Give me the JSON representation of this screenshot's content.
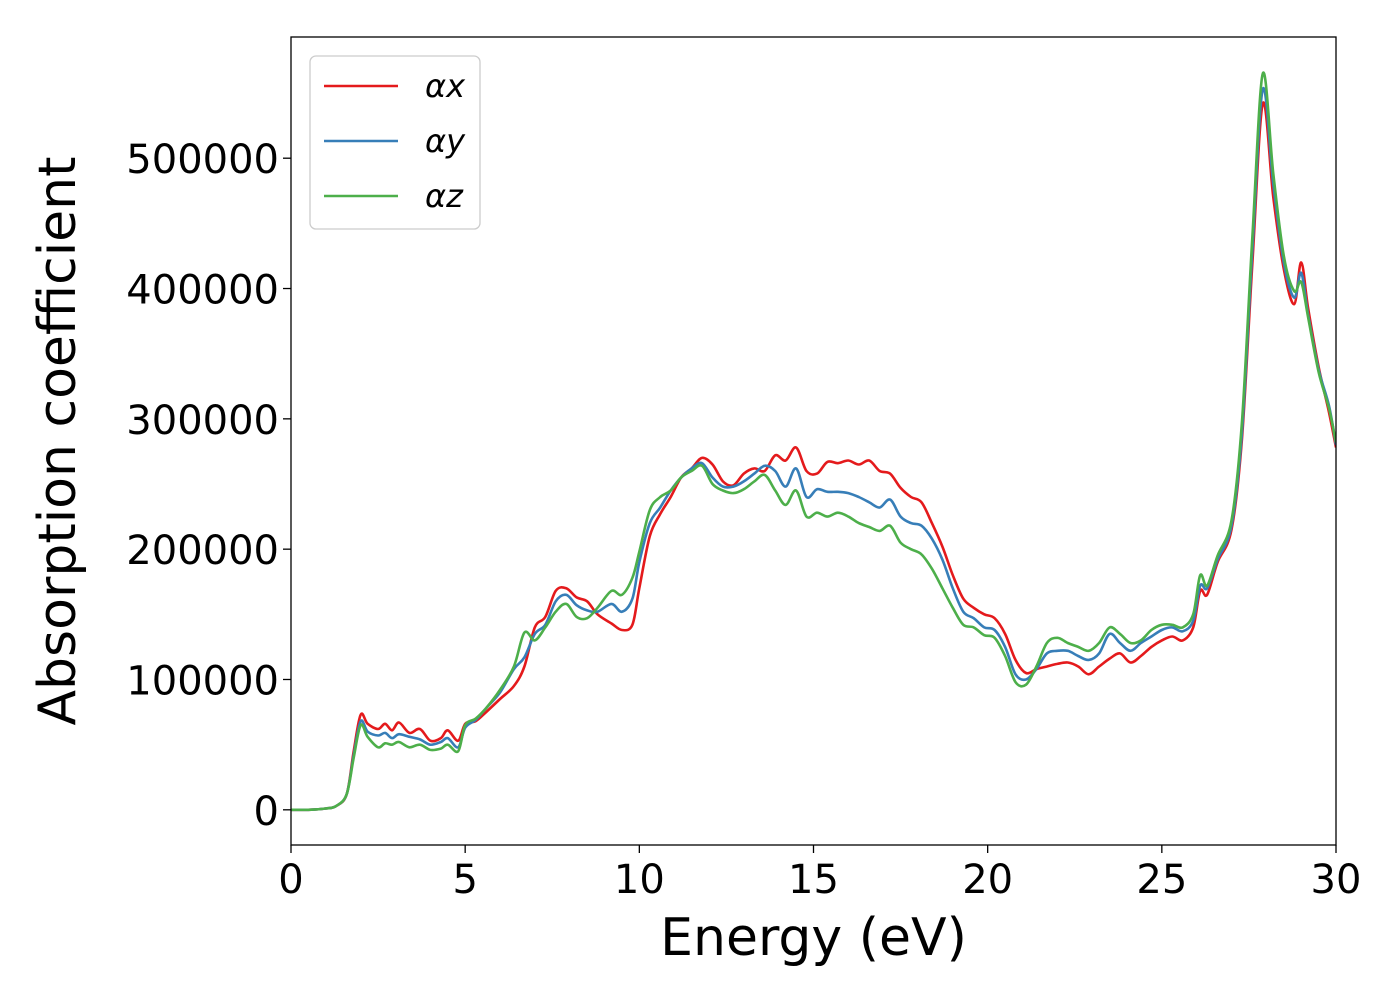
{
  "chart_data": {
    "type": "line",
    "xlabel": "Energy (eV)",
    "ylabel": "Absorption coefficient",
    "xlim": [
      0,
      30
    ],
    "ylim": [
      -27000,
      593000
    ],
    "xticks": [
      0,
      5,
      10,
      15,
      20,
      25,
      30
    ],
    "yticks": [
      0,
      100000,
      200000,
      300000,
      400000,
      500000
    ],
    "grid": false,
    "legend_position": "top-left",
    "series": [
      {
        "name": "αx",
        "color": "#e41a1c",
        "points": [
          [
            0,
            0
          ],
          [
            0.5,
            0
          ],
          [
            1.0,
            1000
          ],
          [
            1.3,
            3000
          ],
          [
            1.6,
            12000
          ],
          [
            1.8,
            45000
          ],
          [
            2.0,
            73000
          ],
          [
            2.2,
            66000
          ],
          [
            2.5,
            62000
          ],
          [
            2.7,
            66000
          ],
          [
            2.9,
            61000
          ],
          [
            3.1,
            67000
          ],
          [
            3.4,
            59000
          ],
          [
            3.7,
            62000
          ],
          [
            4.0,
            53000
          ],
          [
            4.3,
            55000
          ],
          [
            4.5,
            61000
          ],
          [
            4.8,
            53000
          ],
          [
            5.0,
            66000
          ],
          [
            5.3,
            68000
          ],
          [
            5.6,
            75000
          ],
          [
            6.0,
            85000
          ],
          [
            6.4,
            95000
          ],
          [
            6.7,
            110000
          ],
          [
            7.0,
            140000
          ],
          [
            7.3,
            148000
          ],
          [
            7.6,
            168000
          ],
          [
            7.9,
            170000
          ],
          [
            8.2,
            163000
          ],
          [
            8.5,
            160000
          ],
          [
            8.8,
            150000
          ],
          [
            9.2,
            143000
          ],
          [
            9.5,
            138000
          ],
          [
            9.8,
            142000
          ],
          [
            10.0,
            170000
          ],
          [
            10.3,
            210000
          ],
          [
            10.6,
            227000
          ],
          [
            10.9,
            240000
          ],
          [
            11.2,
            255000
          ],
          [
            11.5,
            262000
          ],
          [
            11.8,
            270000
          ],
          [
            12.1,
            265000
          ],
          [
            12.4,
            252000
          ],
          [
            12.7,
            249000
          ],
          [
            13.0,
            258000
          ],
          [
            13.3,
            262000
          ],
          [
            13.6,
            260000
          ],
          [
            13.9,
            272000
          ],
          [
            14.2,
            268000
          ],
          [
            14.5,
            278000
          ],
          [
            14.8,
            260000
          ],
          [
            15.1,
            258000
          ],
          [
            15.4,
            267000
          ],
          [
            15.7,
            266000
          ],
          [
            16.0,
            268000
          ],
          [
            16.3,
            265000
          ],
          [
            16.6,
            268000
          ],
          [
            16.9,
            260000
          ],
          [
            17.2,
            258000
          ],
          [
            17.5,
            247000
          ],
          [
            17.8,
            240000
          ],
          [
            18.1,
            236000
          ],
          [
            18.4,
            220000
          ],
          [
            18.7,
            202000
          ],
          [
            19.0,
            180000
          ],
          [
            19.3,
            162000
          ],
          [
            19.6,
            155000
          ],
          [
            19.9,
            150000
          ],
          [
            20.2,
            147000
          ],
          [
            20.5,
            135000
          ],
          [
            20.8,
            115000
          ],
          [
            21.1,
            105000
          ],
          [
            21.4,
            108000
          ],
          [
            21.7,
            110000
          ],
          [
            22.0,
            112000
          ],
          [
            22.3,
            113000
          ],
          [
            22.6,
            110000
          ],
          [
            22.9,
            104000
          ],
          [
            23.2,
            110000
          ],
          [
            23.5,
            116000
          ],
          [
            23.8,
            120000
          ],
          [
            24.1,
            113000
          ],
          [
            24.4,
            118000
          ],
          [
            24.7,
            125000
          ],
          [
            25.0,
            130000
          ],
          [
            25.3,
            133000
          ],
          [
            25.6,
            130000
          ],
          [
            25.9,
            140000
          ],
          [
            26.1,
            168000
          ],
          [
            26.3,
            165000
          ],
          [
            26.6,
            190000
          ],
          [
            27.0,
            215000
          ],
          [
            27.3,
            285000
          ],
          [
            27.6,
            420000
          ],
          [
            27.9,
            542000
          ],
          [
            28.2,
            470000
          ],
          [
            28.5,
            415000
          ],
          [
            28.8,
            388000
          ],
          [
            29.0,
            420000
          ],
          [
            29.2,
            385000
          ],
          [
            29.5,
            340000
          ],
          [
            29.8,
            305000
          ],
          [
            30.0,
            278000
          ]
        ]
      },
      {
        "name": "αy",
        "color": "#377eb8",
        "points": [
          [
            0,
            0
          ],
          [
            0.5,
            0
          ],
          [
            1.0,
            1000
          ],
          [
            1.3,
            3000
          ],
          [
            1.6,
            12000
          ],
          [
            1.8,
            42000
          ],
          [
            2.0,
            68000
          ],
          [
            2.2,
            60000
          ],
          [
            2.5,
            57000
          ],
          [
            2.7,
            59000
          ],
          [
            2.9,
            55000
          ],
          [
            3.1,
            58000
          ],
          [
            3.4,
            56000
          ],
          [
            3.7,
            54000
          ],
          [
            4.0,
            50000
          ],
          [
            4.3,
            52000
          ],
          [
            4.5,
            55000
          ],
          [
            4.8,
            48000
          ],
          [
            5.0,
            63000
          ],
          [
            5.3,
            69000
          ],
          [
            5.6,
            78000
          ],
          [
            6.0,
            90000
          ],
          [
            6.4,
            108000
          ],
          [
            6.7,
            117000
          ],
          [
            7.0,
            135000
          ],
          [
            7.3,
            142000
          ],
          [
            7.6,
            160000
          ],
          [
            7.9,
            165000
          ],
          [
            8.2,
            157000
          ],
          [
            8.5,
            153000
          ],
          [
            8.8,
            152000
          ],
          [
            9.2,
            158000
          ],
          [
            9.5,
            152000
          ],
          [
            9.8,
            162000
          ],
          [
            10.0,
            190000
          ],
          [
            10.3,
            220000
          ],
          [
            10.6,
            232000
          ],
          [
            10.9,
            245000
          ],
          [
            11.2,
            255000
          ],
          [
            11.5,
            262000
          ],
          [
            11.8,
            266000
          ],
          [
            12.1,
            255000
          ],
          [
            12.4,
            248000
          ],
          [
            12.7,
            248000
          ],
          [
            13.0,
            252000
          ],
          [
            13.3,
            258000
          ],
          [
            13.6,
            264000
          ],
          [
            13.9,
            260000
          ],
          [
            14.2,
            248000
          ],
          [
            14.5,
            262000
          ],
          [
            14.8,
            240000
          ],
          [
            15.1,
            246000
          ],
          [
            15.4,
            244000
          ],
          [
            15.7,
            244000
          ],
          [
            16.0,
            243000
          ],
          [
            16.3,
            240000
          ],
          [
            16.6,
            236000
          ],
          [
            16.9,
            232000
          ],
          [
            17.2,
            238000
          ],
          [
            17.5,
            225000
          ],
          [
            17.8,
            220000
          ],
          [
            18.1,
            218000
          ],
          [
            18.4,
            208000
          ],
          [
            18.7,
            192000
          ],
          [
            19.0,
            170000
          ],
          [
            19.3,
            152000
          ],
          [
            19.6,
            147000
          ],
          [
            19.9,
            140000
          ],
          [
            20.2,
            138000
          ],
          [
            20.5,
            125000
          ],
          [
            20.8,
            104000
          ],
          [
            21.1,
            100000
          ],
          [
            21.4,
            108000
          ],
          [
            21.7,
            120000
          ],
          [
            22.0,
            122000
          ],
          [
            22.3,
            122000
          ],
          [
            22.6,
            118000
          ],
          [
            22.9,
            115000
          ],
          [
            23.2,
            120000
          ],
          [
            23.5,
            135000
          ],
          [
            23.8,
            128000
          ],
          [
            24.1,
            122000
          ],
          [
            24.4,
            128000
          ],
          [
            24.7,
            133000
          ],
          [
            25.0,
            138000
          ],
          [
            25.3,
            140000
          ],
          [
            25.6,
            137000
          ],
          [
            25.9,
            145000
          ],
          [
            26.1,
            172000
          ],
          [
            26.3,
            170000
          ],
          [
            26.6,
            192000
          ],
          [
            27.0,
            218000
          ],
          [
            27.3,
            290000
          ],
          [
            27.6,
            430000
          ],
          [
            27.9,
            553000
          ],
          [
            28.2,
            480000
          ],
          [
            28.5,
            420000
          ],
          [
            28.8,
            393000
          ],
          [
            29.0,
            412000
          ],
          [
            29.2,
            380000
          ],
          [
            29.5,
            338000
          ],
          [
            29.8,
            310000
          ],
          [
            30.0,
            280000
          ]
        ]
      },
      {
        "name": "αz",
        "color": "#4daf4a",
        "points": [
          [
            0,
            0
          ],
          [
            0.5,
            0
          ],
          [
            1.0,
            1000
          ],
          [
            1.3,
            3000
          ],
          [
            1.6,
            12000
          ],
          [
            1.8,
            40000
          ],
          [
            2.0,
            65000
          ],
          [
            2.2,
            56000
          ],
          [
            2.5,
            48000
          ],
          [
            2.7,
            51000
          ],
          [
            2.9,
            50000
          ],
          [
            3.1,
            52000
          ],
          [
            3.4,
            48000
          ],
          [
            3.7,
            50000
          ],
          [
            4.0,
            46000
          ],
          [
            4.3,
            47000
          ],
          [
            4.5,
            50000
          ],
          [
            4.8,
            45000
          ],
          [
            5.0,
            65000
          ],
          [
            5.3,
            70000
          ],
          [
            5.6,
            78000
          ],
          [
            6.0,
            92000
          ],
          [
            6.4,
            110000
          ],
          [
            6.7,
            136000
          ],
          [
            7.0,
            130000
          ],
          [
            7.3,
            140000
          ],
          [
            7.6,
            152000
          ],
          [
            7.9,
            158000
          ],
          [
            8.2,
            148000
          ],
          [
            8.5,
            147000
          ],
          [
            8.8,
            155000
          ],
          [
            9.2,
            168000
          ],
          [
            9.5,
            165000
          ],
          [
            9.8,
            178000
          ],
          [
            10.0,
            198000
          ],
          [
            10.3,
            230000
          ],
          [
            10.6,
            240000
          ],
          [
            10.9,
            245000
          ],
          [
            11.2,
            255000
          ],
          [
            11.5,
            260000
          ],
          [
            11.8,
            264000
          ],
          [
            12.1,
            250000
          ],
          [
            12.4,
            245000
          ],
          [
            12.7,
            243000
          ],
          [
            13.0,
            246000
          ],
          [
            13.3,
            252000
          ],
          [
            13.6,
            257000
          ],
          [
            13.9,
            245000
          ],
          [
            14.2,
            234000
          ],
          [
            14.5,
            245000
          ],
          [
            14.8,
            225000
          ],
          [
            15.1,
            228000
          ],
          [
            15.4,
            225000
          ],
          [
            15.7,
            228000
          ],
          [
            16.0,
            225000
          ],
          [
            16.3,
            220000
          ],
          [
            16.6,
            217000
          ],
          [
            16.9,
            214000
          ],
          [
            17.2,
            218000
          ],
          [
            17.5,
            205000
          ],
          [
            17.8,
            200000
          ],
          [
            18.1,
            196000
          ],
          [
            18.4,
            185000
          ],
          [
            18.7,
            170000
          ],
          [
            19.0,
            155000
          ],
          [
            19.3,
            142000
          ],
          [
            19.6,
            140000
          ],
          [
            19.9,
            134000
          ],
          [
            20.2,
            132000
          ],
          [
            20.5,
            118000
          ],
          [
            20.8,
            98000
          ],
          [
            21.1,
            96000
          ],
          [
            21.4,
            110000
          ],
          [
            21.7,
            128000
          ],
          [
            22.0,
            132000
          ],
          [
            22.3,
            128000
          ],
          [
            22.6,
            125000
          ],
          [
            22.9,
            122000
          ],
          [
            23.2,
            128000
          ],
          [
            23.5,
            140000
          ],
          [
            23.8,
            135000
          ],
          [
            24.1,
            128000
          ],
          [
            24.4,
            130000
          ],
          [
            24.7,
            138000
          ],
          [
            25.0,
            142000
          ],
          [
            25.3,
            142000
          ],
          [
            25.6,
            140000
          ],
          [
            25.9,
            150000
          ],
          [
            26.1,
            180000
          ],
          [
            26.3,
            172000
          ],
          [
            26.6,
            195000
          ],
          [
            27.0,
            222000
          ],
          [
            27.3,
            298000
          ],
          [
            27.6,
            440000
          ],
          [
            27.9,
            565000
          ],
          [
            28.2,
            488000
          ],
          [
            28.5,
            425000
          ],
          [
            28.8,
            398000
          ],
          [
            29.0,
            405000
          ],
          [
            29.2,
            378000
          ],
          [
            29.5,
            336000
          ],
          [
            29.8,
            308000
          ],
          [
            30.0,
            282000
          ]
        ]
      }
    ]
  }
}
